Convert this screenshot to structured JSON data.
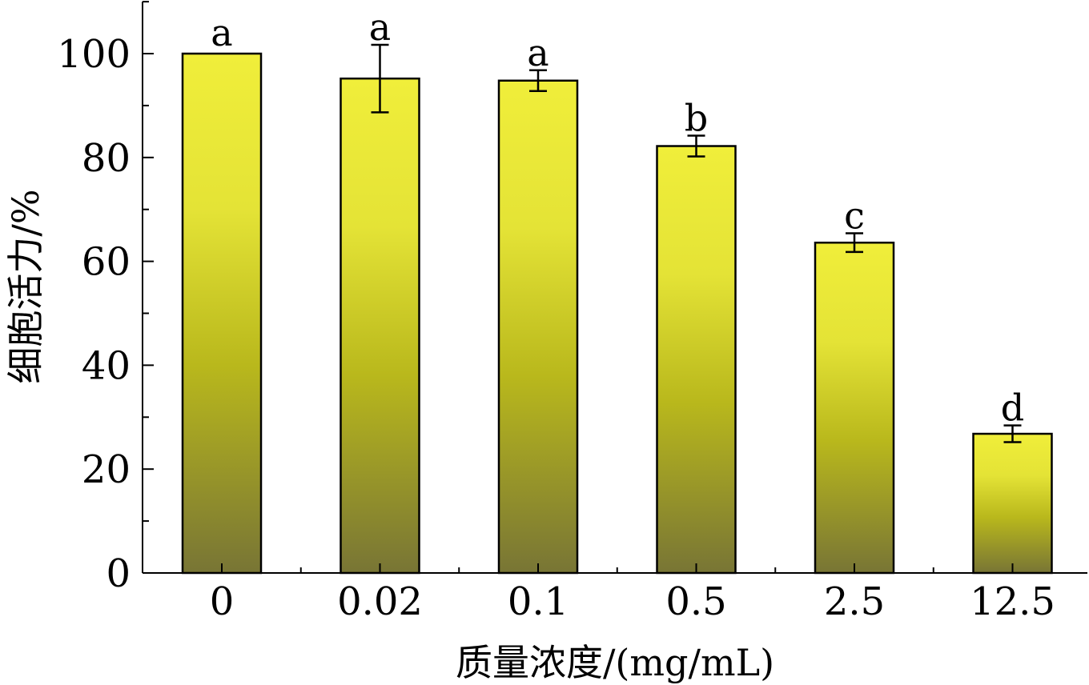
{
  "chart_data": {
    "type": "bar",
    "title": "",
    "xlabel": "质量浓度/(mg/mL)",
    "ylabel": "细胞活力/%",
    "categories": [
      "0",
      "0.02",
      "0.1",
      "0.5",
      "2.5",
      "12.5"
    ],
    "values": [
      100,
      95.2,
      94.8,
      82.2,
      63.6,
      26.8
    ],
    "errors": [
      0,
      6.5,
      2.0,
      2.0,
      1.8,
      1.6
    ],
    "significance": [
      "a",
      "a",
      "a",
      "b",
      "c",
      "d"
    ],
    "ylim": [
      0,
      110
    ],
    "yticks": [
      0,
      20,
      40,
      60,
      80,
      100
    ],
    "grid": false,
    "colors": {
      "bar_top": "#f0ee3a",
      "bar_mid": "#b9b81c",
      "bar_bottom": "#787535",
      "axis": "#000000"
    }
  }
}
